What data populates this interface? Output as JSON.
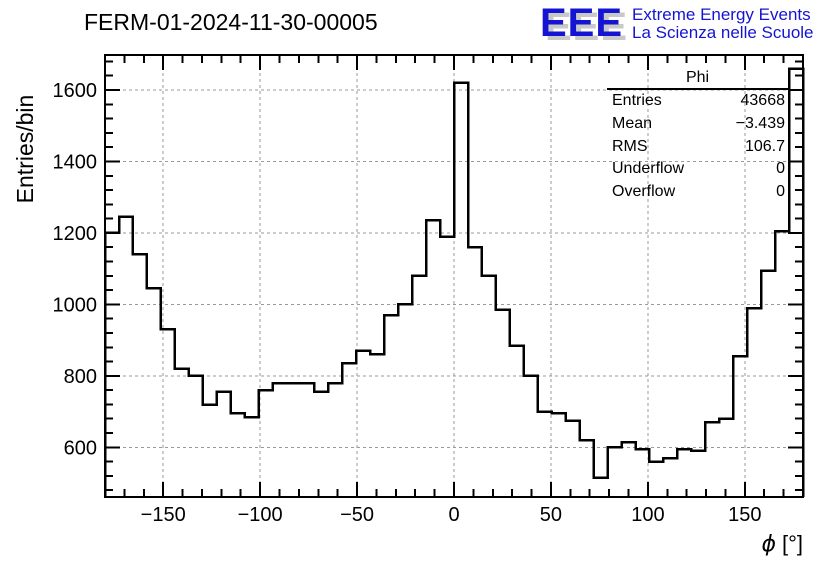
{
  "header": {
    "logo": {
      "acronym": "EEE",
      "line1": "Extreme Energy Events",
      "line2": "La Scienza nelle Scuole",
      "color": "#1414d2",
      "shadow_color": "#c8c8c8"
    }
  },
  "stats_box": {
    "title": "Phi",
    "rows": [
      {
        "label": "Entries",
        "value": "43668"
      },
      {
        "label": "Mean",
        "value": "−3.439"
      },
      {
        "label": "RMS",
        "value": "106.7"
      },
      {
        "label": "Underflow",
        "value": "0"
      },
      {
        "label": "Overflow",
        "value": "0"
      }
    ]
  },
  "chart_data": {
    "type": "bar",
    "subtype": "step-histogram-outline",
    "title": "FERM-01-2024-11-30-00005",
    "histogram_name": "Phi",
    "xlabel": "ϕ [°]",
    "xlabel_symbol": "ϕ",
    "xlabel_unit": "[°]",
    "ylabel": "Entries/bin",
    "xlim": [
      -180,
      180
    ],
    "ylim": [
      461,
      1698
    ],
    "bin_start": -180,
    "bin_width": 7.2,
    "values": [
      1200,
      1245,
      1140,
      1045,
      930,
      820,
      800,
      720,
      755,
      695,
      685,
      760,
      780,
      780,
      780,
      755,
      780,
      835,
      870,
      860,
      970,
      1000,
      1080,
      1235,
      1190,
      1620,
      1160,
      1080,
      985,
      885,
      800,
      700,
      695,
      675,
      620,
      515,
      600,
      615,
      595,
      560,
      570,
      595,
      590,
      670,
      680,
      855,
      990,
      1095,
      1205,
      1660
    ],
    "xticks": [
      -150,
      -100,
      -50,
      0,
      50,
      100,
      150
    ],
    "yticks": [
      600,
      800,
      1000,
      1200,
      1400,
      1600
    ],
    "minor_x_step": 10,
    "minor_y_step": 40,
    "grid": true,
    "legend": "none",
    "line_color": "#000000",
    "grid_color": "#9a9a9a"
  }
}
